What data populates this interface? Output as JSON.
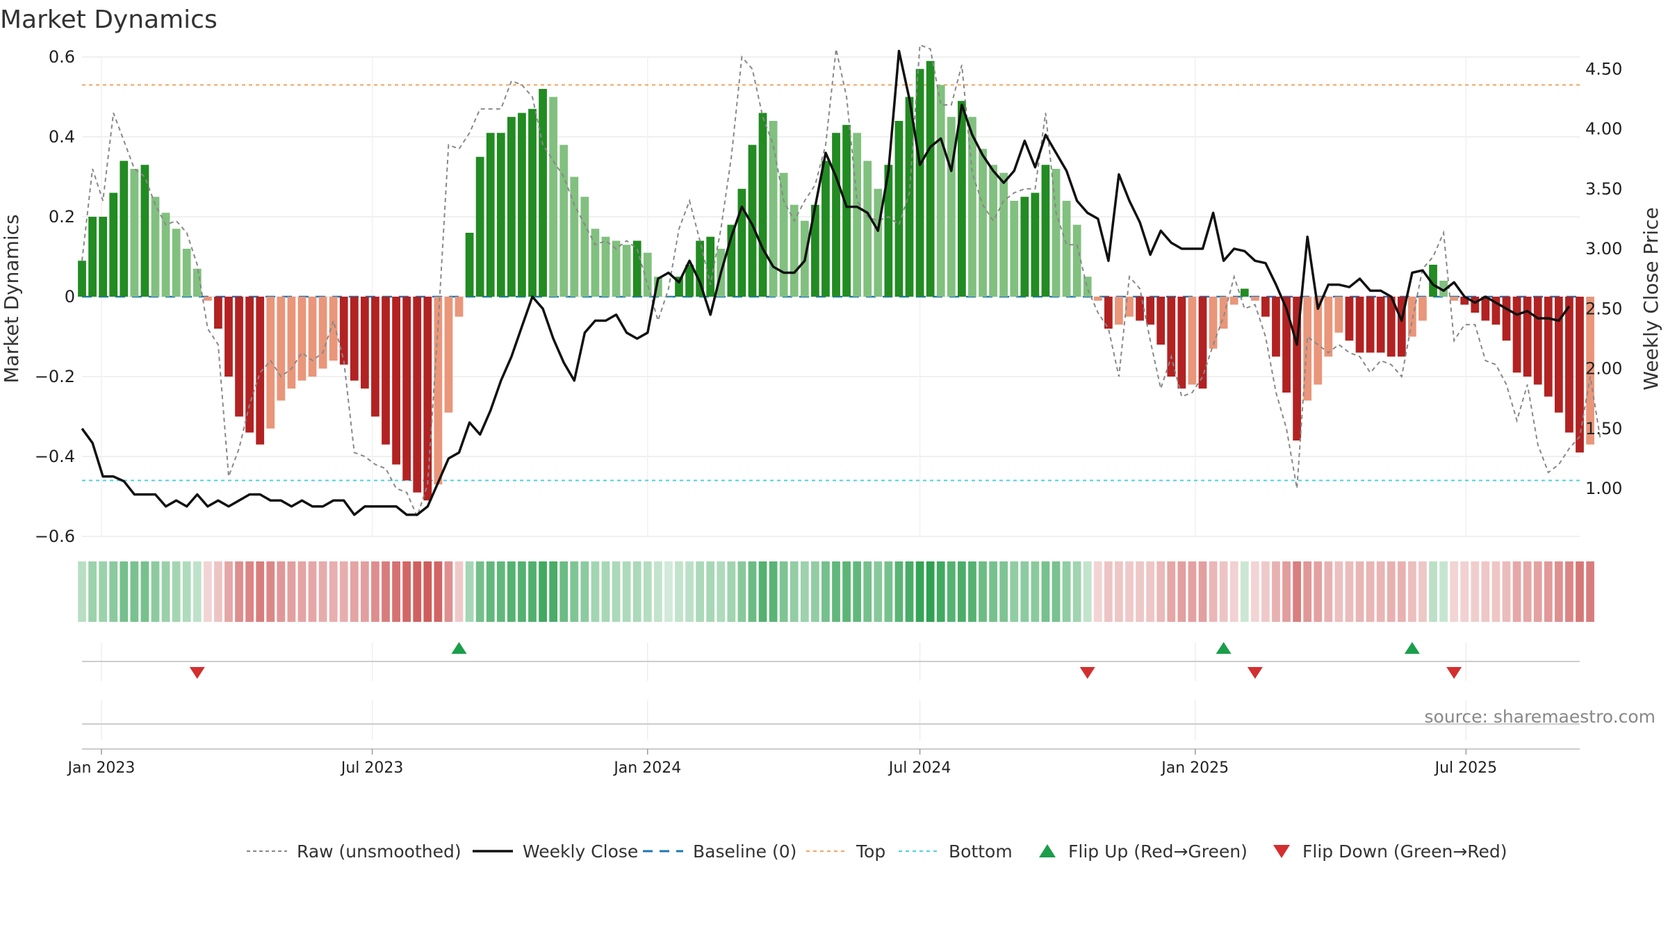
{
  "chart_data": {
    "type": "bar",
    "title": "Market Dynamics",
    "ylabel": "Market Dynamics",
    "y2label": "Weekly Close Price",
    "ylim": [
      -0.6,
      0.6
    ],
    "y2lim": [
      0.6,
      4.6
    ],
    "yticks": [
      "0.6",
      "0.4",
      "0.2",
      "0",
      "−0.2",
      "−0.4",
      "−0.6"
    ],
    "y2ticks": [
      "4.50",
      "4.00",
      "3.50",
      "3.00",
      "2.50",
      "2.00",
      "1.50",
      "1.00"
    ],
    "x_tick_labels": [
      "Jan 2023",
      "Jul 2023",
      "Jan 2024",
      "Jul 2024",
      "Jan 2025",
      "Jul 2025"
    ],
    "x_tick_dates": [
      "2023-01-01",
      "2023-07-01",
      "2024-01-01",
      "2024-07-01",
      "2025-01-01",
      "2025-07-01"
    ],
    "x_start": "2022-12-19",
    "x_end": "2025-09-15",
    "grid": true,
    "legend_position": "bottom",
    "source_text": "source: sharemaestro.com",
    "top_line": 0.53,
    "bottom_line": -0.46,
    "baseline": 0,
    "bars_start_date": "2022-12-19",
    "bar_interval_days": 7,
    "bar_values": [
      0.09,
      0.2,
      0.2,
      0.26,
      0.34,
      0.32,
      0.33,
      0.25,
      0.21,
      0.17,
      0.12,
      0.07,
      -0.01,
      -0.08,
      -0.2,
      -0.3,
      -0.34,
      -0.37,
      -0.33,
      -0.26,
      -0.23,
      -0.21,
      -0.2,
      -0.18,
      -0.16,
      -0.17,
      -0.21,
      -0.23,
      -0.3,
      -0.37,
      -0.42,
      -0.46,
      -0.49,
      -0.51,
      -0.47,
      -0.29,
      -0.05,
      0.16,
      0.35,
      0.41,
      0.41,
      0.45,
      0.46,
      0.47,
      0.52,
      0.5,
      0.38,
      0.3,
      0.25,
      0.17,
      0.15,
      0.14,
      0.13,
      0.14,
      0.11,
      0.05,
      0,
      0.05,
      0.08,
      0.14,
      0.15,
      0.12,
      0.18,
      0.27,
      0.38,
      0.46,
      0.44,
      0.31,
      0.23,
      0.19,
      0.23,
      0.34,
      0.41,
      0.43,
      0.41,
      0.34,
      0.27,
      0.33,
      0.44,
      0.5,
      0.57,
      0.59,
      0.53,
      0.45,
      0.49,
      0.45,
      0.37,
      0.33,
      0.31,
      0.24,
      0.25,
      0.26,
      0.33,
      0.32,
      0.24,
      0.18,
      0.05,
      -0.01,
      -0.08,
      -0.07,
      -0.05,
      -0.06,
      -0.07,
      -0.12,
      -0.2,
      -0.23,
      -0.22,
      -0.23,
      -0.13,
      -0.08,
      -0.02,
      0.02,
      -0.01,
      -0.05,
      -0.15,
      -0.24,
      -0.36,
      -0.26,
      -0.22,
      -0.15,
      -0.09,
      -0.11,
      -0.14,
      -0.14,
      -0.14,
      -0.15,
      -0.15,
      -0.1,
      -0.06,
      0.08,
      0.04,
      -0.01,
      -0.02,
      -0.04,
      -0.06,
      -0.07,
      -0.11,
      -0.19,
      -0.2,
      -0.22,
      -0.25,
      -0.29,
      -0.34,
      -0.39,
      -0.37
    ],
    "series": [
      {
        "name": "Raw (unsmoothed)",
        "style": "dashed",
        "color": "#888888",
        "values": [
          0.09,
          0.32,
          0.24,
          0.46,
          0.39,
          0.32,
          0.3,
          0.23,
          0.18,
          0.19,
          0.16,
          0.08,
          -0.08,
          -0.12,
          -0.45,
          -0.38,
          -0.27,
          -0.19,
          -0.16,
          -0.2,
          -0.18,
          -0.14,
          -0.16,
          -0.14,
          -0.06,
          -0.16,
          -0.39,
          -0.4,
          -0.42,
          -0.43,
          -0.48,
          -0.49,
          -0.55,
          -0.47,
          -0.07,
          0.38,
          0.37,
          0.41,
          0.47,
          0.47,
          0.47,
          0.54,
          0.53,
          0.5,
          0.38,
          0.34,
          0.3,
          0.23,
          0.18,
          0.13,
          0.14,
          0.12,
          0.14,
          0.12,
          0.03,
          -0.06,
          0.02,
          0.17,
          0.24,
          0.14,
          0.03,
          0.17,
          0.35,
          0.6,
          0.57,
          0.45,
          0.38,
          0.24,
          0.19,
          0.24,
          0.28,
          0.38,
          0.62,
          0.5,
          0.24,
          0.2,
          0.19,
          0.2,
          0.18,
          0.26,
          0.63,
          0.62,
          0.48,
          0.48,
          0.58,
          0.31,
          0.23,
          0.19,
          0.24,
          0.26,
          0.27,
          0.27,
          0.46,
          0.21,
          0.13,
          0.13,
          0.02,
          -0.04,
          -0.08,
          -0.2,
          0.05,
          0.02,
          -0.11,
          -0.23,
          -0.15,
          -0.25,
          -0.24,
          -0.2,
          -0.12,
          -0.05,
          0.05,
          -0.03,
          -0.02,
          -0.1,
          -0.24,
          -0.33,
          -0.48,
          -0.1,
          -0.12,
          -0.14,
          -0.12,
          -0.14,
          -0.15,
          -0.19,
          -0.16,
          -0.17,
          -0.2,
          -0.06,
          0.07,
          0.1,
          0.16,
          -0.11,
          -0.07,
          -0.07,
          -0.16,
          -0.17,
          -0.22,
          -0.31,
          -0.22,
          -0.37,
          -0.44,
          -0.42,
          -0.38,
          -0.35,
          -0.2,
          -0.36
        ]
      },
      {
        "name": "Weekly Close",
        "style": "solid",
        "color": "#111111",
        "axis": "right",
        "values": [
          1.5,
          1.38,
          1.1,
          1.1,
          1.06,
          0.95,
          0.95,
          0.95,
          0.85,
          0.9,
          0.85,
          0.95,
          0.85,
          0.9,
          0.85,
          0.9,
          0.95,
          0.95,
          0.9,
          0.9,
          0.85,
          0.9,
          0.85,
          0.85,
          0.9,
          0.9,
          0.78,
          0.85,
          0.85,
          0.85,
          0.85,
          0.78,
          0.78,
          0.85,
          1.05,
          1.25,
          1.3,
          1.55,
          1.45,
          1.65,
          1.9,
          2.1,
          2.35,
          2.6,
          2.5,
          2.25,
          2.05,
          1.9,
          2.3,
          2.4,
          2.4,
          2.45,
          2.3,
          2.25,
          2.3,
          2.75,
          2.8,
          2.72,
          2.9,
          2.72,
          2.45,
          2.8,
          3.1,
          3.35,
          3.2,
          3.0,
          2.85,
          2.8,
          2.8,
          2.9,
          3.35,
          3.8,
          3.6,
          3.35,
          3.35,
          3.3,
          3.15,
          3.65,
          4.65,
          4.25,
          3.7,
          3.85,
          3.92,
          3.65,
          4.2,
          3.95,
          3.78,
          3.65,
          3.55,
          3.65,
          3.9,
          3.68,
          3.95,
          3.8,
          3.65,
          3.4,
          3.3,
          3.25,
          2.9,
          3.62,
          3.4,
          3.22,
          2.95,
          3.15,
          3.05,
          3.0,
          3.0,
          3.0,
          3.3,
          2.9,
          3.0,
          2.98,
          2.9,
          2.88,
          2.7,
          2.5,
          2.2,
          3.1,
          2.5,
          2.7,
          2.7,
          2.68,
          2.75,
          2.65,
          2.65,
          2.6,
          2.4,
          2.8,
          2.82,
          2.7,
          2.65,
          2.72,
          2.6,
          2.55,
          2.6,
          2.55,
          2.5,
          2.45,
          2.48,
          2.42,
          2.42,
          2.4,
          2.52
        ]
      },
      {
        "name": "Baseline (0)",
        "style": "dashed",
        "color": "#1f77b4"
      },
      {
        "name": "Top",
        "style": "dotted",
        "color": "#f4a460"
      },
      {
        "name": "Bottom",
        "style": "dotted",
        "color": "#4dd0e1"
      }
    ],
    "flips": [
      {
        "type": "down",
        "date": "2023-03-06"
      },
      {
        "type": "up",
        "date": "2023-08-28"
      },
      {
        "type": "down",
        "date": "2024-10-21"
      },
      {
        "type": "up",
        "date": "2025-01-20"
      },
      {
        "type": "down",
        "date": "2025-02-10"
      },
      {
        "type": "up",
        "date": "2025-05-26"
      },
      {
        "type": "down",
        "date": "2025-06-23"
      }
    ],
    "legend": [
      {
        "label": "Raw (unsmoothed)",
        "kind": "dashed",
        "color": "#888888"
      },
      {
        "label": "Weekly Close",
        "kind": "solid",
        "color": "#111111"
      },
      {
        "label": "Baseline (0)",
        "kind": "dashed-blue",
        "color": "#1f77b4"
      },
      {
        "label": "Top",
        "kind": "dotted",
        "color": "#f4a460"
      },
      {
        "label": "Bottom",
        "kind": "dotted",
        "color": "#4dd0e1"
      },
      {
        "label": "Flip Up (Red→Green)",
        "kind": "tri-up",
        "color": "#1a9e4a"
      },
      {
        "label": "Flip Down (Green→Red)",
        "kind": "tri-down",
        "color": "#d32f2f"
      }
    ],
    "colors": {
      "pos_strong": "#228b22",
      "pos_weak": "#81c07f",
      "neg_strong": "#b22222",
      "neg_weak": "#e9967a",
      "flip_up": "#1a9e4a",
      "flip_down": "#d32f2f"
    }
  }
}
